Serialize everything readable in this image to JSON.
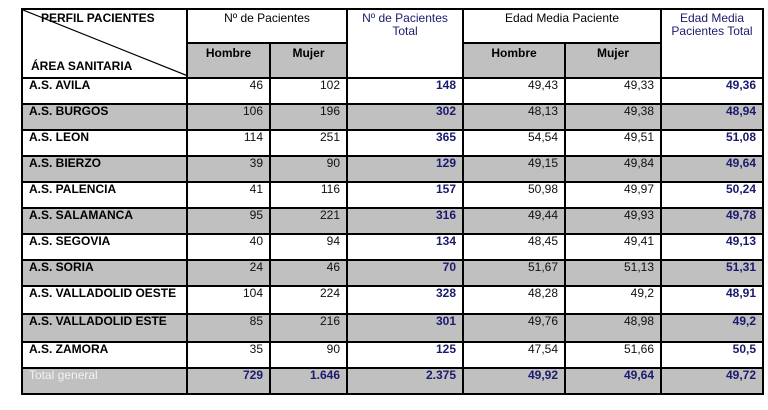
{
  "table": {
    "corner_top": "PERFIL PACIENTES",
    "corner_bottom": "ÁREA SANITARIA",
    "group_patients": "Nº de Pacientes",
    "group_patients_total": "Nº de Pacientes Total",
    "group_age": "Edad Media Paciente",
    "group_age_total": "Edad Media Pacientes Total",
    "sub_hombre": "Hombre",
    "sub_mujer": "Mujer",
    "sub_hombre2": "Hombre",
    "sub_mujer2": "Mujer",
    "rows": [
      {
        "area": "A.S. AVILA",
        "hombre": "46",
        "mujer": "102",
        "total": "148",
        "edad_hombre": "49,43",
        "edad_mujer": "49,33",
        "edad_total": "49,36"
      },
      {
        "area": "A.S. BURGOS",
        "hombre": "106",
        "mujer": "196",
        "total": "302",
        "edad_hombre": "48,13",
        "edad_mujer": "49,38",
        "edad_total": "48,94"
      },
      {
        "area": "A.S. LEON",
        "hombre": "114",
        "mujer": "251",
        "total": "365",
        "edad_hombre": "54,54",
        "edad_mujer": "49,51",
        "edad_total": "51,08"
      },
      {
        "area": "A.S. BIERZO",
        "hombre": "39",
        "mujer": "90",
        "total": "129",
        "edad_hombre": "49,15",
        "edad_mujer": "49,84",
        "edad_total": "49,64"
      },
      {
        "area": "A.S. PALENCIA",
        "hombre": "41",
        "mujer": "116",
        "total": "157",
        "edad_hombre": "50,98",
        "edad_mujer": "49,97",
        "edad_total": "50,24"
      },
      {
        "area": "A.S. SALAMANCA",
        "hombre": "95",
        "mujer": "221",
        "total": "316",
        "edad_hombre": "49,44",
        "edad_mujer": "49,93",
        "edad_total": "49,78"
      },
      {
        "area": "A.S. SEGOVIA",
        "hombre": "40",
        "mujer": "94",
        "total": "134",
        "edad_hombre": "48,45",
        "edad_mujer": "49,41",
        "edad_total": "49,13"
      },
      {
        "area": "A.S. SORIA",
        "hombre": "24",
        "mujer": "46",
        "total": "70",
        "edad_hombre": "51,67",
        "edad_mujer": "51,13",
        "edad_total": "51,31"
      },
      {
        "area": "A.S. VALLADOLID OESTE",
        "hombre": "104",
        "mujer": "224",
        "total": "328",
        "edad_hombre": "48,28",
        "edad_mujer": "49,2",
        "edad_total": "48,91"
      },
      {
        "area": "A.S. VALLADOLID ESTE",
        "hombre": "85",
        "mujer": "216",
        "total": "301",
        "edad_hombre": "49,76",
        "edad_mujer": "48,98",
        "edad_total": "49,2"
      },
      {
        "area": "A.S. ZAMORA",
        "hombre": "35",
        "mujer": "90",
        "total": "125",
        "edad_hombre": "47,54",
        "edad_mujer": "51,66",
        "edad_total": "50,5"
      }
    ],
    "total_row": {
      "area": "Total general",
      "hombre": "729",
      "mujer": "1.646",
      "total": "2.375",
      "edad_hombre": "49,92",
      "edad_mujer": "49,64",
      "edad_total": "49,72"
    }
  }
}
